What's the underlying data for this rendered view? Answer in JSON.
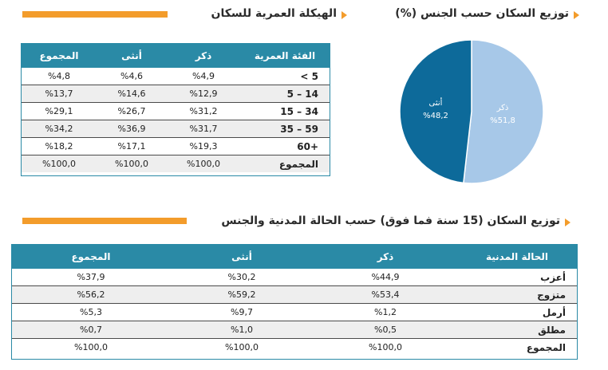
{
  "age_section": {
    "title": "الهيكلة العمرية للسكان",
    "headers": [
      "الفئة العمرية",
      "ذكر",
      "أنثى",
      "المجموع"
    ],
    "rows": [
      {
        "group": "5 >",
        "male": "%4,9",
        "female": "%4,6",
        "total": "%4,8"
      },
      {
        "group": "14 – 5",
        "male": "%12,9",
        "female": "%14,6",
        "total": "%13,7"
      },
      {
        "group": "34 – 15",
        "male": "%31,2",
        "female": "%26,7",
        "total": "%29,1"
      },
      {
        "group": "59 – 35",
        "male": "%31,7",
        "female": "%36,9",
        "total": "%34,2"
      },
      {
        "group": "+60",
        "male": "%19,3",
        "female": "%17,1",
        "total": "%18,2"
      },
      {
        "group": "المجموع",
        "male": "%100,0",
        "female": "%100,0",
        "total": "%100,0"
      }
    ]
  },
  "gender_section": {
    "title": "توزيع السكان حسب الجنس (%)",
    "male_label": "ذكر",
    "male_value": "%51,8",
    "female_label": "أنثى",
    "female_value": "%48,2"
  },
  "chart_data": {
    "type": "pie",
    "categories": [
      "ذكر",
      "أنثى"
    ],
    "values": [
      51.8,
      48.2
    ],
    "colors": [
      "#a7c8e8",
      "#0d6a9a"
    ]
  },
  "marital_section": {
    "title": "توزيع السكان (15 سنة فما فوق) حسب الحالة المدنية والجنس",
    "headers": [
      "الحالة المدنية",
      "ذكر",
      "أنثى",
      "المجموع"
    ],
    "rows": [
      {
        "status": "أعزب",
        "male": "%44,9",
        "female": "%30,2",
        "total": "%37,9"
      },
      {
        "status": "متزوج",
        "male": "%53,4",
        "female": "%59,2",
        "total": "%56,2"
      },
      {
        "status": "أرمل",
        "male": "%1,2",
        "female": "%9,7",
        "total": "%5,3"
      },
      {
        "status": "مطلق",
        "male": "%0,5",
        "female": "%1,0",
        "total": "%0,7"
      },
      {
        "status": "المجموع",
        "male": "%100,0",
        "female": "%100,0",
        "total": "%100,0"
      }
    ]
  },
  "colors": {
    "accent": "#f39c2b",
    "header": "#2a8aa6"
  }
}
